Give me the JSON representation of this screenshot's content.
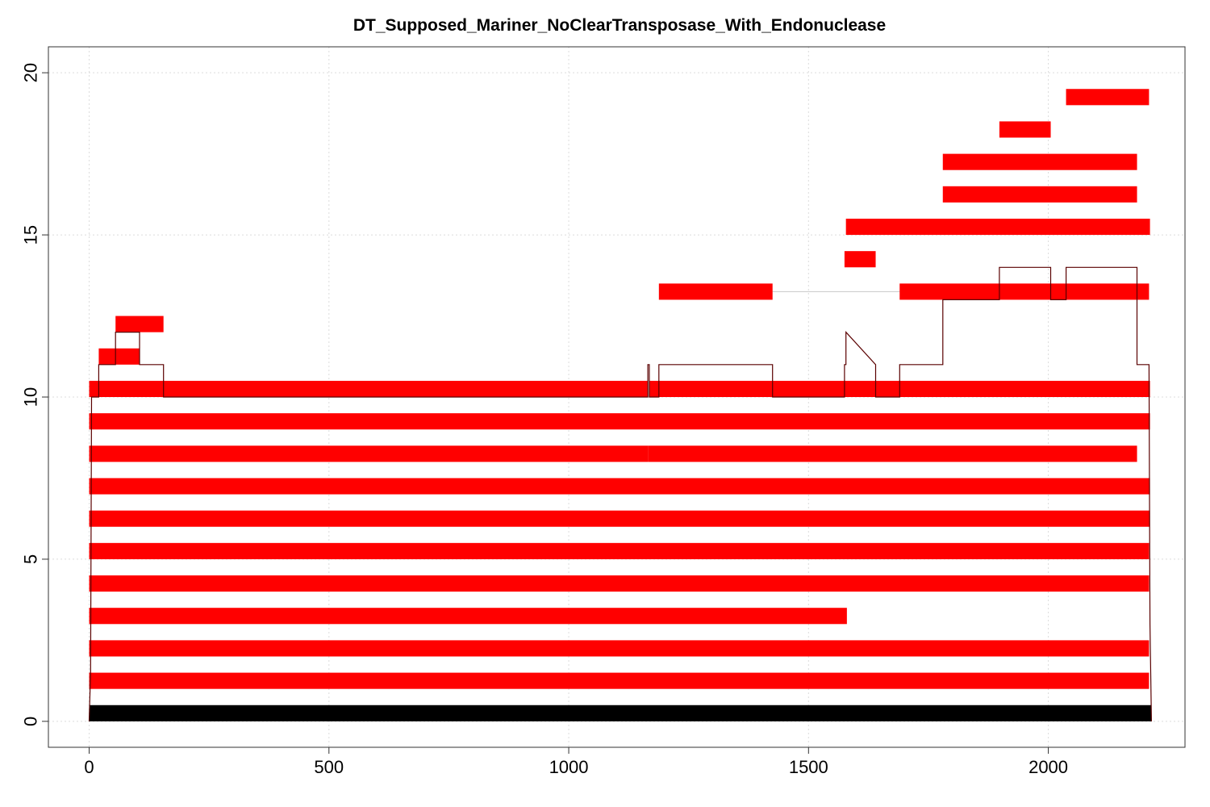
{
  "chart_data": {
    "type": "bar",
    "title": "DT_Supposed_Mariner_NoClearTransposase_With_Endonuclease",
    "xlabel": "",
    "ylabel": "",
    "xlim": [
      -85,
      2285
    ],
    "ylim": [
      -0.8,
      20.8
    ],
    "x_ticks": [
      0,
      500,
      1000,
      1500,
      2000
    ],
    "x_tick_labels": [
      "0",
      "500",
      "1000",
      "1500",
      "2000"
    ],
    "y_ticks": [
      0,
      5,
      10,
      15,
      20
    ],
    "y_tick_labels": [
      "0",
      "5",
      "10",
      "15",
      "20"
    ],
    "grid": true,
    "colors": {
      "consensus": "#000000",
      "hit": "#ff0000",
      "coverage": "#5a0000",
      "connector": "#c8c8c8"
    },
    "consensus": {
      "start": 0,
      "end": 2215,
      "y": 0
    },
    "hits": [
      {
        "row": 1,
        "start": 0,
        "end": 2210
      },
      {
        "row": 2,
        "start": 0,
        "end": 2210
      },
      {
        "row": 3,
        "start": 0,
        "end": 1580
      },
      {
        "row": 4,
        "start": 0,
        "end": 2210
      },
      {
        "row": 5,
        "start": 0,
        "end": 2210
      },
      {
        "row": 6,
        "start": 0,
        "end": 2212
      },
      {
        "row": 7,
        "start": 0,
        "end": 2212
      },
      {
        "row": 8,
        "start": 0,
        "end": 1165
      },
      {
        "row": 8,
        "start": 1165,
        "end": 2185
      },
      {
        "row": 9,
        "start": 0,
        "end": 2212
      },
      {
        "row": 10,
        "start": 0,
        "end": 1165
      },
      {
        "row": 10,
        "start": 1168,
        "end": 2212
      },
      {
        "row": 11,
        "start": 20,
        "end": 105
      },
      {
        "row": 12,
        "start": 55,
        "end": 155
      },
      {
        "row": 13,
        "start": 1188,
        "end": 1425
      },
      {
        "row": 13,
        "start": 1690,
        "end": 2210
      },
      {
        "row": 14,
        "start": 1575,
        "end": 1640
      },
      {
        "row": 15,
        "start": 1578,
        "end": 2212
      },
      {
        "row": 16,
        "start": 1780,
        "end": 2185
      },
      {
        "row": 17,
        "start": 1780,
        "end": 2185
      },
      {
        "row": 18,
        "start": 1898,
        "end": 2005
      },
      {
        "row": 19,
        "start": 2037,
        "end": 2210
      }
    ],
    "connectors": [
      {
        "row": 13,
        "start": 1425,
        "end": 1690
      }
    ],
    "coverage": {
      "x": [
        0,
        3,
        5,
        20,
        20,
        55,
        55,
        105,
        105,
        155,
        155,
        1165,
        1165,
        1168,
        1168,
        1188,
        1188,
        1425,
        1425,
        1575,
        1575,
        1578,
        1578,
        1640,
        1640,
        1690,
        1690,
        1780,
        1780,
        1898,
        1898,
        2005,
        2005,
        2037,
        2037,
        2185,
        2185,
        2210,
        2212,
        2215
      ],
      "y": [
        0,
        1.5,
        10,
        10,
        11,
        11,
        12,
        12,
        11,
        11,
        10,
        10,
        11,
        11,
        10,
        10,
        11,
        11,
        10,
        10,
        11,
        11,
        12,
        11,
        10,
        10,
        11,
        11,
        13,
        13,
        14,
        14,
        13,
        13,
        14,
        14,
        11,
        11,
        3,
        0
      ]
    }
  }
}
